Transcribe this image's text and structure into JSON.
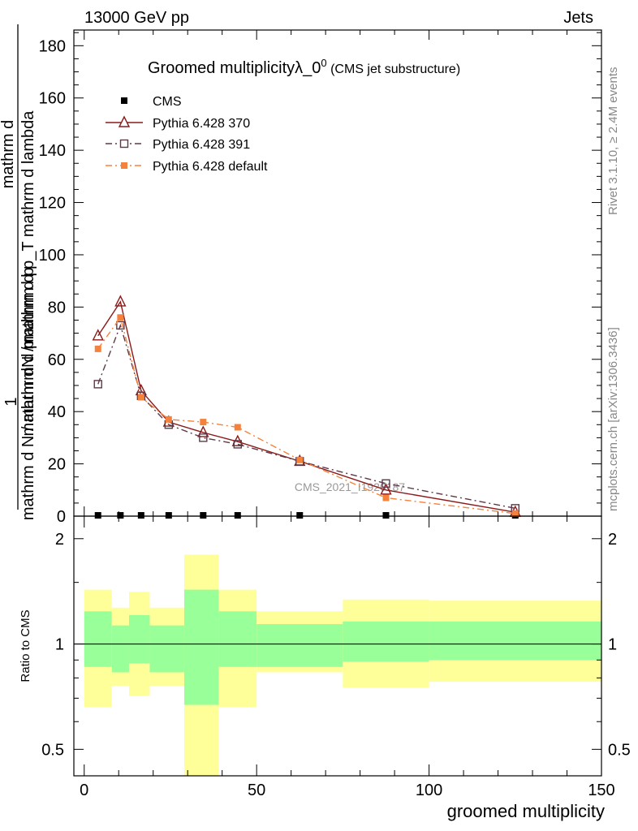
{
  "header": {
    "left": "13000 GeV pp",
    "right": "Jets"
  },
  "side": {
    "rivet": "Rivet 3.1.10, ≥ 2.4M events",
    "mcplots": "mcplots.cern.ch [arXiv:1306.3436]"
  },
  "chart_data": [
    {
      "type": "line",
      "title": "Groomed multiplicityλ_0",
      "title_sup": "0",
      "subtitle": "(CMS jet substructure)",
      "watermark": "CMS_2021_I1920187",
      "ylabel_top": "1",
      "ylabel_numerator": "mathrm dN / mathrm d p_T mathrm d lambda",
      "ylabel_denominator": "mathrm d N / mathrm d p_T mathrm d p_T mathrm d lambda",
      "ylabel_line1": "mathrm d",
      "ylabel_line2": "mathrm d N / mathrm d p",
      "ylabel_line3": "mathrm d p",
      "xlim": [
        -3,
        150
      ],
      "ylim": [
        0,
        186
      ],
      "yticks": [
        0,
        20,
        40,
        60,
        80,
        100,
        120,
        140,
        160,
        180
      ],
      "yticklabels": [
        "0",
        "20",
        "40",
        "60",
        "80",
        "100",
        "120",
        "140",
        "160",
        "180"
      ],
      "legend_placement": "top-left",
      "series": [
        {
          "name": "CMS",
          "color": "#000000",
          "marker": "filled-square",
          "x": [
            4,
            10.5,
            16.5,
            24.5,
            34.5,
            44.5,
            62.5,
            87.5,
            125
          ],
          "y": [
            0.3,
            0.3,
            0.3,
            0.3,
            0.3,
            0.3,
            0.3,
            0.3,
            0.3
          ]
        },
        {
          "name": "Pythia 6.428 370",
          "color": "#8b1a1a",
          "marker": "open-triangle",
          "dash": "solid",
          "x": [
            4,
            10.5,
            16.5,
            24.5,
            34.5,
            44.5,
            62.5,
            87.5,
            125
          ],
          "y": [
            69,
            82,
            48,
            36,
            32,
            28.5,
            21,
            10,
            1.5
          ]
        },
        {
          "name": "Pythia 6.428 391",
          "color": "#5c3a48",
          "marker": "open-square",
          "dash": "dashdot",
          "x": [
            4,
            10.5,
            16.5,
            24.5,
            34.5,
            44.5,
            62.5,
            87.5,
            125
          ],
          "y": [
            50.5,
            73,
            46,
            35,
            30,
            27.5,
            21,
            12.5,
            3
          ]
        },
        {
          "name": "Pythia 6.428 default",
          "color": "#f5823c",
          "marker": "filled-square",
          "dash": "dashdot",
          "x": [
            4,
            10.5,
            16.5,
            24.5,
            34.5,
            44.5,
            62.5,
            87.5,
            125
          ],
          "y": [
            64,
            76,
            45.5,
            37,
            36,
            34,
            21.5,
            7,
            1
          ]
        }
      ]
    },
    {
      "type": "area",
      "ylabel": "Ratio to CMS",
      "xlabel": "groomed multiplicity",
      "xlim": [
        -3,
        150
      ],
      "ylim": [
        0.42,
        2.32
      ],
      "log_y": true,
      "xticks": [
        0,
        50,
        100,
        150
      ],
      "xticklabels": [
        "0",
        "50",
        "100",
        "150"
      ],
      "yticks": [
        0.5,
        1,
        2
      ],
      "yticklabels": [
        "0.5",
        "1",
        "2"
      ],
      "reference_line": 1,
      "bands": [
        {
          "x0": 0,
          "x1": 8,
          "inner": [
            0.86,
            1.24
          ],
          "outer": [
            0.66,
            1.43
          ]
        },
        {
          "x0": 8,
          "x1": 13,
          "inner": [
            0.83,
            1.13
          ],
          "outer": [
            0.76,
            1.27
          ]
        },
        {
          "x0": 13,
          "x1": 19,
          "inner": [
            0.88,
            1.21
          ],
          "outer": [
            0.71,
            1.41
          ]
        },
        {
          "x0": 19,
          "x1": 29,
          "inner": [
            0.83,
            1.13
          ],
          "outer": [
            0.76,
            1.27
          ]
        },
        {
          "x0": 29,
          "x1": 39,
          "inner": [
            0.67,
            1.43
          ],
          "outer": [
            0.3,
            1.8
          ]
        },
        {
          "x0": 39,
          "x1": 50,
          "inner": [
            0.86,
            1.24
          ],
          "outer": [
            0.66,
            1.43
          ]
        },
        {
          "x0": 50,
          "x1": 75,
          "inner": [
            0.86,
            1.14
          ],
          "outer": [
            0.83,
            1.24
          ]
        },
        {
          "x0": 75,
          "x1": 100,
          "inner": [
            0.89,
            1.16
          ],
          "outer": [
            0.75,
            1.34
          ]
        },
        {
          "x0": 100,
          "x1": 150,
          "inner": [
            0.9,
            1.16
          ],
          "outer": [
            0.78,
            1.33
          ]
        }
      ],
      "colors": {
        "inner": "#99ff99",
        "outer": "#ffff99"
      }
    }
  ]
}
